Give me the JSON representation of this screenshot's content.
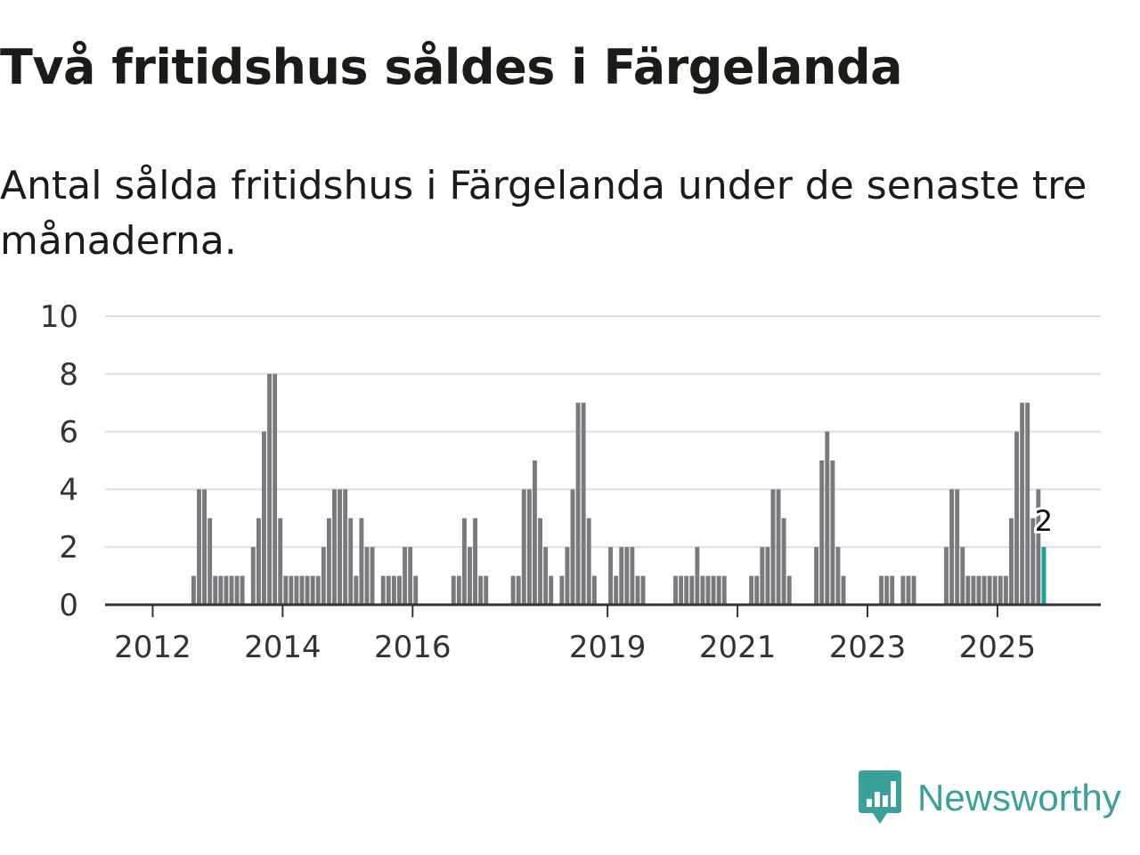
{
  "title": "Två fritidshus såldes i Färgelanda",
  "subtitle": "Antal sålda fritidshus i Färgelanda under de senaste tre månaderna.",
  "brand": {
    "name": "Newsworthy",
    "color": "#3aa19a",
    "icon": "newsworthy-logo-icon"
  },
  "colors": {
    "bar": "#7a7980",
    "highlight": "#1aa39a",
    "grid": "#dedede",
    "axis": "#333333"
  },
  "chart_data": {
    "type": "bar",
    "title": "Två fritidshus såldes i Färgelanda",
    "xlabel": "",
    "ylabel": "",
    "ylim": [
      0,
      10
    ],
    "yticks": [
      0,
      2,
      4,
      6,
      8,
      10
    ],
    "x_tick_labels": [
      {
        "label": "2012",
        "month_index": 0
      },
      {
        "label": "2014",
        "month_index": 24
      },
      {
        "label": "2016",
        "month_index": 48
      },
      {
        "label": "2019",
        "month_index": 84
      },
      {
        "label": "2021",
        "month_index": 108
      },
      {
        "label": "2023",
        "month_index": 132
      },
      {
        "label": "2025",
        "month_index": 156
      }
    ],
    "start": "2011-11",
    "values": [
      0,
      0,
      0,
      0,
      0,
      0,
      0,
      0,
      0,
      0,
      0,
      0,
      1,
      4,
      4,
      3,
      1,
      1,
      1,
      1,
      1,
      1,
      0,
      2,
      3,
      6,
      8,
      8,
      3,
      1,
      1,
      1,
      1,
      1,
      1,
      1,
      2,
      3,
      4,
      4,
      4,
      3,
      1,
      3,
      2,
      2,
      0,
      1,
      1,
      1,
      1,
      2,
      2,
      1,
      0,
      0,
      0,
      0,
      0,
      0,
      1,
      1,
      3,
      2,
      3,
      1,
      1,
      0,
      0,
      0,
      0,
      1,
      1,
      4,
      4,
      5,
      3,
      2,
      1,
      0,
      1,
      2,
      4,
      7,
      7,
      3,
      1,
      0,
      0,
      2,
      1,
      2,
      2,
      2,
      1,
      1,
      0,
      0,
      0,
      0,
      0,
      1,
      1,
      1,
      1,
      2,
      1,
      1,
      1,
      1,
      1,
      0,
      0,
      0,
      0,
      1,
      1,
      2,
      2,
      4,
      4,
      3,
      1,
      0,
      0,
      0,
      0,
      2,
      5,
      6,
      5,
      2,
      1,
      0,
      0,
      0,
      0,
      0,
      0,
      1,
      1,
      1,
      0,
      1,
      1,
      1,
      0,
      0,
      0,
      0,
      0,
      2,
      4,
      4,
      2,
      1,
      1,
      1,
      1,
      1,
      1,
      1,
      1,
      3,
      6,
      7,
      7,
      3,
      4,
      2
    ],
    "highlight_last": true,
    "annotation": {
      "label": "2",
      "value": 2
    }
  }
}
